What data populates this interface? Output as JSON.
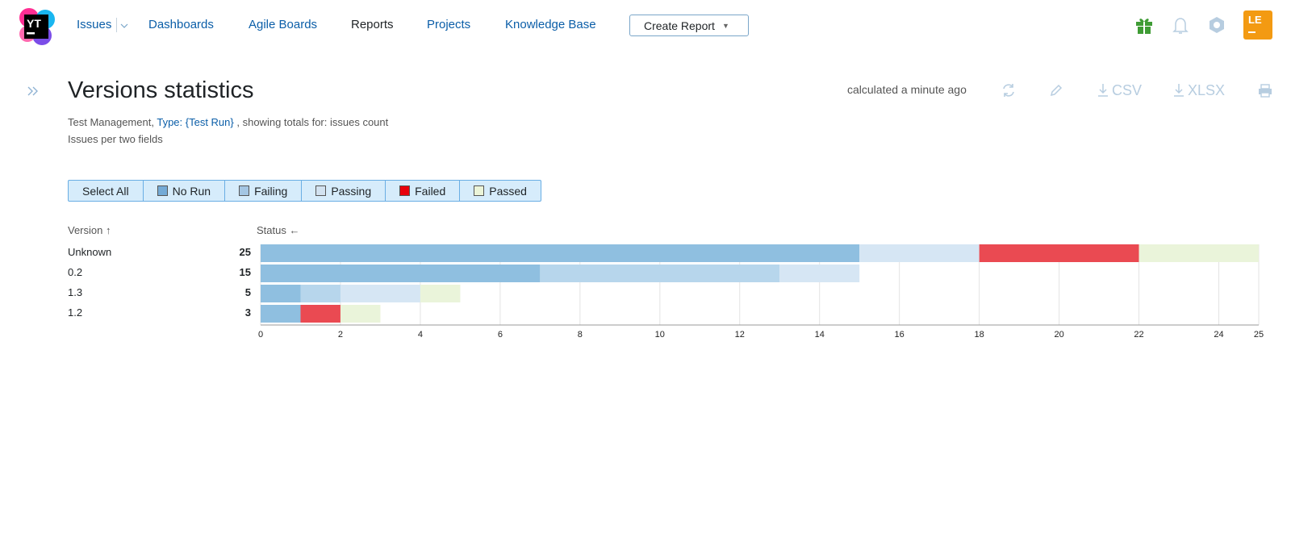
{
  "header": {
    "logo_text": "YT",
    "nav": [
      {
        "label": "Issues"
      },
      {
        "label": "Dashboards"
      },
      {
        "label": "Agile Boards"
      },
      {
        "label": "Reports"
      },
      {
        "label": "Projects"
      },
      {
        "label": "Knowledge Base"
      }
    ],
    "create_button": "Create Report",
    "icons": [
      "gift-icon",
      "bell-icon",
      "help-icon"
    ],
    "avatar_initials": "LE",
    "colors": {
      "link": "#0b5ea8",
      "gift": "#3f9c35",
      "avatar": "#f39a12"
    }
  },
  "report": {
    "title": "Versions statistics",
    "calculated": "calculated a minute ago",
    "toolbar": {
      "csv": "CSV",
      "xlsx": "XLSX"
    },
    "subtitle_prefix": "Test Management,",
    "subtitle_link": "Type: {Test Run}",
    "subtitle_suffix": ", showing totals for: issues count",
    "subtitle2": "Issues per two fields"
  },
  "legend": {
    "select_all": "Select All",
    "items": [
      {
        "label": "No Run",
        "color": "#74aad6"
      },
      {
        "label": "Failing",
        "color": "#a4c6e3"
      },
      {
        "label": "Passing",
        "color": "#d2e2f0"
      },
      {
        "label": "Failed",
        "color": "#e8000b"
      },
      {
        "label": "Passed",
        "color": "#ebf4d8"
      }
    ]
  },
  "table": {
    "version_header": "Version ↑",
    "status_header": "Status ←",
    "rows": [
      {
        "label": "Unknown",
        "total": "25"
      },
      {
        "label": "0.2",
        "total": "15"
      },
      {
        "label": "1.3",
        "total": "5"
      },
      {
        "label": "1.2",
        "total": "3"
      }
    ]
  },
  "chart_data": {
    "type": "bar",
    "orientation": "horizontal",
    "stacked": true,
    "categories": [
      "Unknown",
      "0.2",
      "1.3",
      "1.2"
    ],
    "series": [
      {
        "name": "No Run",
        "values": [
          15,
          7,
          1,
          1
        ],
        "color": "#8fbfe0"
      },
      {
        "name": "Failing",
        "values": [
          0,
          6,
          1,
          0
        ],
        "color": "#b7d6ec"
      },
      {
        "name": "Passing",
        "values": [
          3,
          2,
          2,
          0
        ],
        "color": "#d6e6f4"
      },
      {
        "name": "Failed",
        "values": [
          4,
          0,
          0,
          1
        ],
        "color": "#ea4a52"
      },
      {
        "name": "Passed",
        "values": [
          3,
          0,
          1,
          1
        ],
        "color": "#eaf4da"
      }
    ],
    "xlim": [
      0,
      25
    ],
    "xticks": [
      "0",
      "2",
      "4",
      "6",
      "8",
      "10",
      "12",
      "14",
      "16",
      "18",
      "20",
      "22",
      "24",
      "25"
    ],
    "grid": true
  }
}
